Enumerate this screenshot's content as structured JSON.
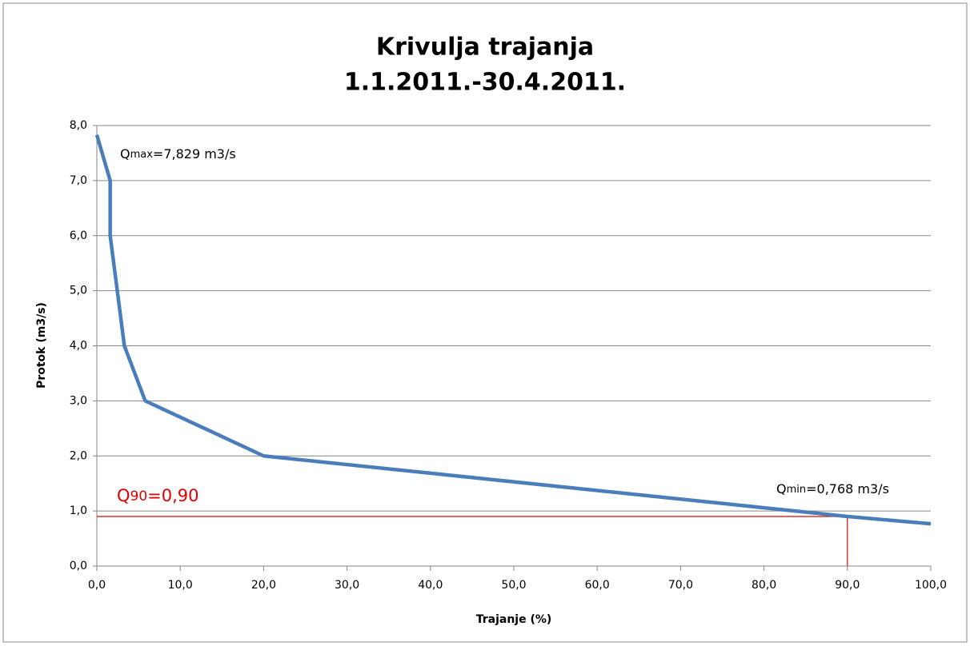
{
  "chart_data": {
    "type": "line",
    "title": "Krivulja trajanja",
    "subtitle": "1.1.2011.-30.4.2011.",
    "x_label": "Trajanje (%)",
    "y_label": "Protok (m3/s)",
    "series": [
      {
        "name": "Krivulja trajanja",
        "color": "#4a7ebb",
        "x": [
          0,
          1.6,
          1.6,
          3.3,
          5.8,
          20,
          85,
          90,
          100
        ],
        "values": [
          7.829,
          7.0,
          6.0,
          4.0,
          3.0,
          2.0,
          0.98,
          0.9,
          0.768
        ]
      }
    ],
    "xlim": [
      0,
      100
    ],
    "ylim": [
      0,
      8
    ],
    "xticks": [
      {
        "value": 0,
        "label": "0,0"
      },
      {
        "value": 10,
        "label": "10,0"
      },
      {
        "value": 20,
        "label": "20,0"
      },
      {
        "value": 30,
        "label": "30,0"
      },
      {
        "value": 40,
        "label": "40,0"
      },
      {
        "value": 50,
        "label": "50,0"
      },
      {
        "value": 60,
        "label": "60,0"
      },
      {
        "value": 70,
        "label": "70,0"
      },
      {
        "value": 80,
        "label": "80,0"
      },
      {
        "value": 90,
        "label": "90,0"
      },
      {
        "value": 100,
        "label": "100,0"
      }
    ],
    "yticks": [
      {
        "value": 0,
        "label": "0,0"
      },
      {
        "value": 1,
        "label": "1,0"
      },
      {
        "value": 2,
        "label": "2,0"
      },
      {
        "value": 3,
        "label": "3,0"
      },
      {
        "value": 4,
        "label": "4,0"
      },
      {
        "value": 5,
        "label": "5,0"
      },
      {
        "value": 6,
        "label": "6,0"
      },
      {
        "value": 7,
        "label": "7,0"
      },
      {
        "value": 8,
        "label": "8,0"
      }
    ],
    "grid": true,
    "reference": {
      "x": 90,
      "y": 0.9,
      "color": "#e00000"
    },
    "annotations": [
      {
        "parts": [
          "Q",
          "max",
          "=7,829 m3/s"
        ]
      },
      {
        "parts": [
          "Q",
          "min",
          "=0,768 m3/s"
        ]
      },
      {
        "parts": [
          "Q",
          "90",
          "=0,90"
        ]
      }
    ]
  }
}
